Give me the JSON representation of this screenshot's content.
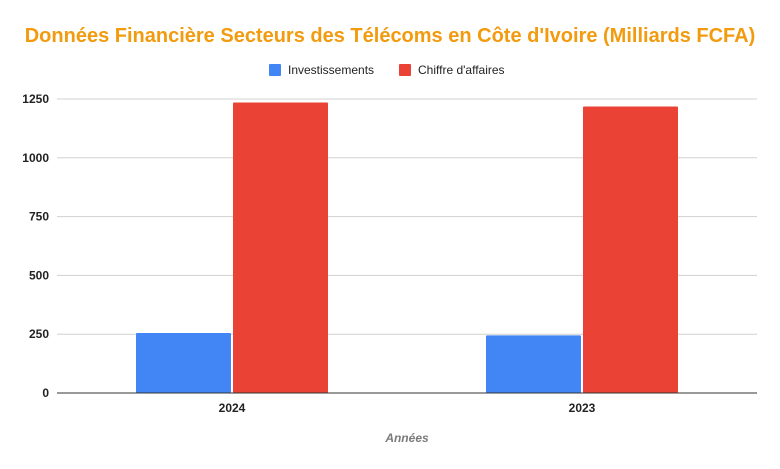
{
  "chart_data": {
    "type": "bar",
    "title": "Données Financière Secteurs des Télécoms en Côte d'Ivoire (Milliards FCFA)",
    "xlabel": "Années",
    "ylabel": "",
    "categories": [
      "2024",
      "2023"
    ],
    "series": [
      {
        "name": "Investissements",
        "color": "#4285f4",
        "values": [
          255,
          245
        ]
      },
      {
        "name": "Chiffre d'affaires",
        "color": "#ea4335",
        "values": [
          1235,
          1218
        ]
      }
    ],
    "ylim": [
      0,
      1250
    ],
    "yticks": [
      "0",
      "250",
      "500",
      "750",
      "1000",
      "1250"
    ],
    "legend_position": "top",
    "grid": true,
    "title_color": "#f29b0f"
  }
}
